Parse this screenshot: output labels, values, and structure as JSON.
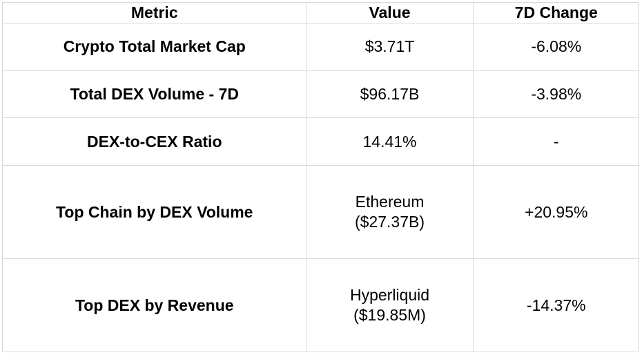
{
  "table": {
    "headers": [
      "Metric",
      "Value",
      "7D Change"
    ],
    "rows": [
      {
        "metric": "Crypto Total Market Cap",
        "value_lines": [
          "$3.71T"
        ],
        "change": "-6.08%"
      },
      {
        "metric": "Total DEX Volume - 7D",
        "value_lines": [
          "$96.17B"
        ],
        "change": "-3.98%"
      },
      {
        "metric": "DEX-to-CEX Ratio",
        "value_lines": [
          "14.41%"
        ],
        "change": "-"
      },
      {
        "metric": "Top Chain by DEX Volume",
        "value_lines": [
          "Ethereum",
          "($27.37B)"
        ],
        "change": "+20.95%"
      },
      {
        "metric": "Top DEX by Revenue",
        "value_lines": [
          "Hyperliquid",
          "($19.85M)"
        ],
        "change": "-14.37%"
      }
    ]
  },
  "colors": {
    "border": "#d9d9d9",
    "text": "#000000",
    "background": "#ffffff"
  }
}
